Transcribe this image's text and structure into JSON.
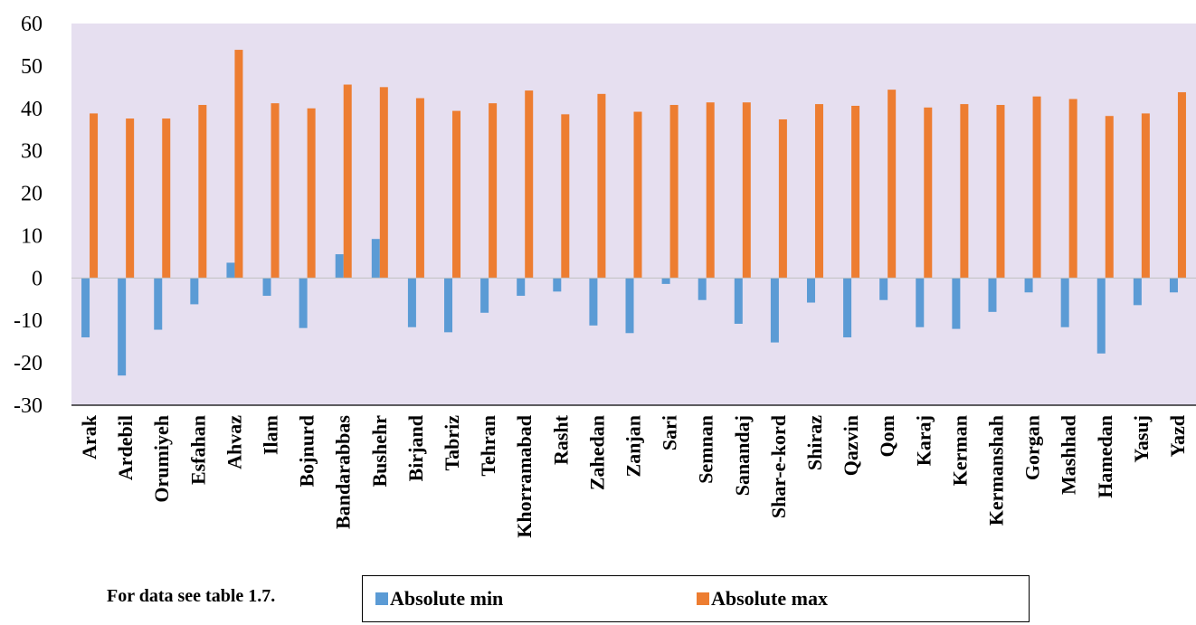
{
  "note": "For data see table 1.7.",
  "chart_data": {
    "type": "bar",
    "title": "",
    "xlabel": "",
    "ylabel": "",
    "ylim": [
      -30,
      60
    ],
    "yticks": [
      -30,
      -20,
      -10,
      0,
      10,
      20,
      30,
      40,
      50,
      60
    ],
    "grid": false,
    "legend_position": "bottom",
    "categories": [
      "Arak",
      "Ardebil",
      "Orumiyeh",
      "Esfahan",
      "Ahvaz",
      "Ilam",
      "Bojnurd",
      "Bandarabbas",
      "Bushehr",
      "Birjand",
      "Tabriz",
      "Tehran",
      "Khorramabad",
      "Rasht",
      "Zahedan",
      "Zanjan",
      "Sari",
      "Semnan",
      "Sanandaj",
      "Shar-e-kord",
      "Shiraz",
      "Qazvin",
      "Qom",
      "Karaj",
      "Kerman",
      "Kermanshah",
      "Gorgan",
      "Mashhad",
      "Hamedan",
      "Yasuj",
      "Yazd"
    ],
    "series": [
      {
        "name": "Absolute min",
        "color": "#5b9bd5",
        "values": [
          -14,
          -23,
          -12.2,
          -6.2,
          3.6,
          -4.2,
          -11.8,
          5.6,
          9.2,
          -11.6,
          -12.8,
          -8.2,
          -4.2,
          -3.2,
          -11.2,
          -13,
          -1.4,
          -5.2,
          -10.8,
          -15.2,
          -5.8,
          -14,
          -5.2,
          -11.6,
          -12,
          -8,
          -3.4,
          -11.6,
          -17.8,
          -6.4,
          -3.4
        ]
      },
      {
        "name": "Absolute max",
        "color": "#ed7d31",
        "values": [
          38.8,
          37.6,
          37.6,
          40.8,
          53.8,
          41.2,
          40,
          45.6,
          45,
          42.4,
          39.4,
          41.2,
          44.2,
          38.6,
          43.4,
          39.2,
          40.8,
          41.4,
          41.4,
          37.4,
          41,
          40.6,
          44.4,
          40.2,
          41,
          40.8,
          42.8,
          42.2,
          38.2,
          38.8,
          43.8
        ]
      }
    ]
  }
}
